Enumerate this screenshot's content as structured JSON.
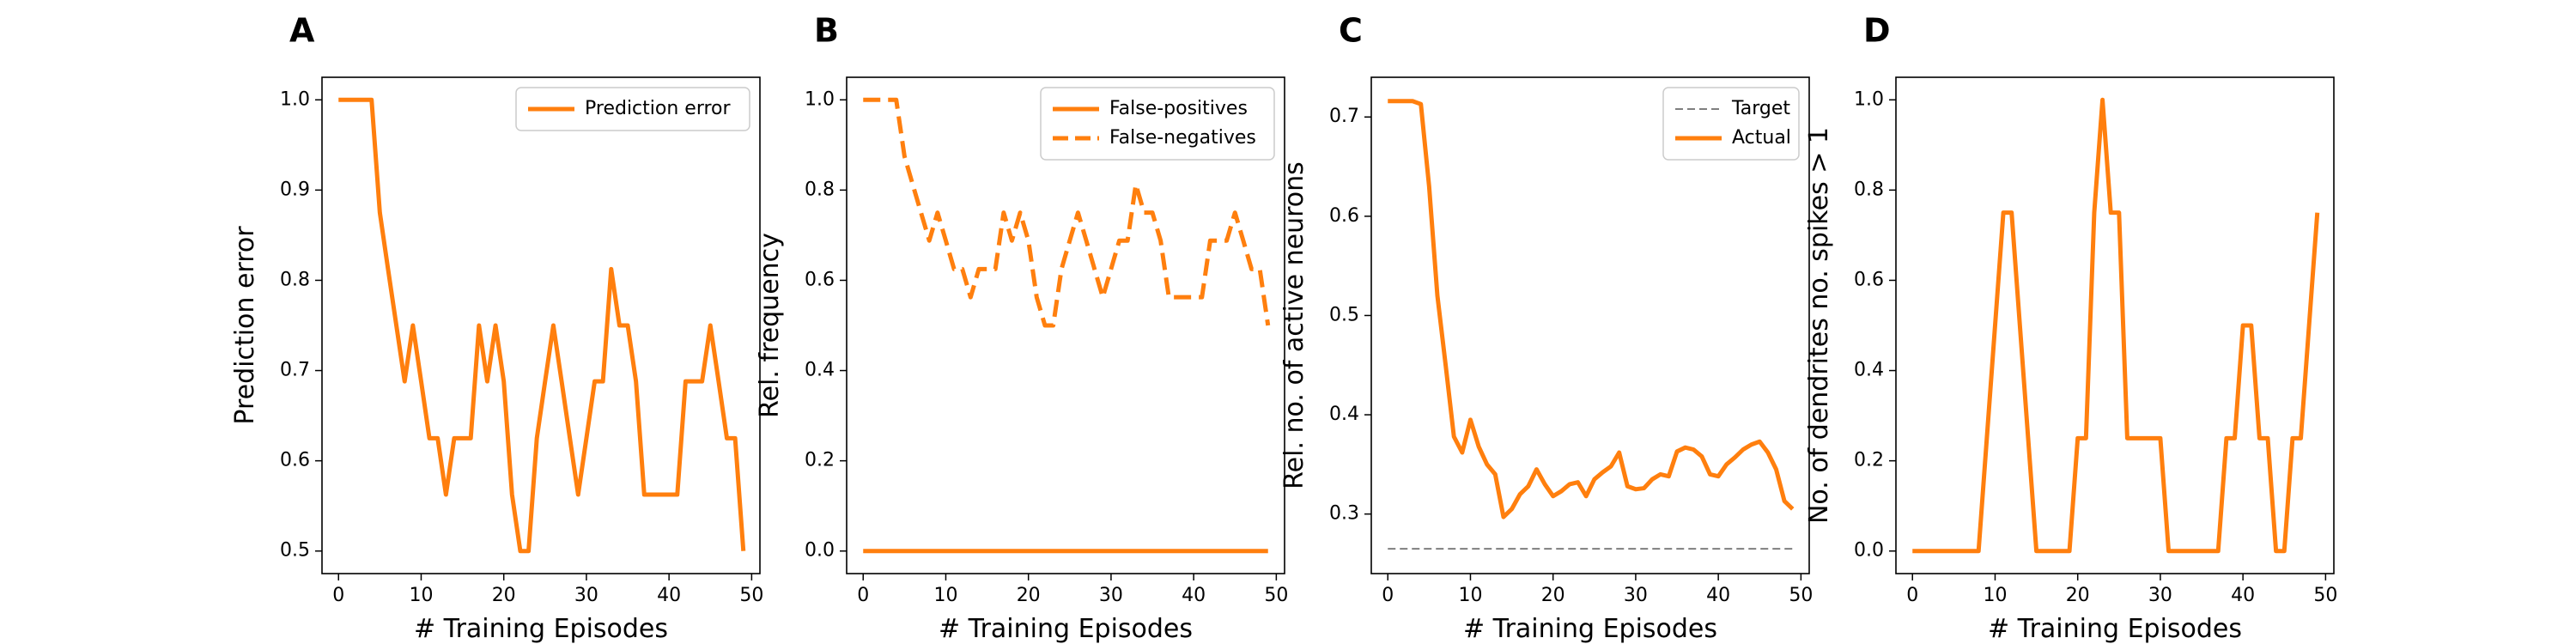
{
  "figure": {
    "background": "#ffffff"
  },
  "chart_data": [
    {
      "panel": "A",
      "type": "line",
      "xlabel": "# Training Episodes",
      "ylabel": "Prediction error",
      "xlim": [
        -2,
        51
      ],
      "ylim": [
        0.475,
        1.025
      ],
      "xticks": [
        0,
        10,
        20,
        30,
        40,
        50
      ],
      "yticks": [
        0.5,
        0.6,
        0.7,
        0.8,
        0.9,
        1.0
      ],
      "ytick_labels": [
        "0.5",
        "0.6",
        "0.7",
        "0.8",
        "0.9",
        "1.0"
      ],
      "legend": {
        "position": "upper right"
      },
      "series": [
        {
          "name": "Prediction error",
          "color": "#ff7f0e",
          "style": "solid",
          "x": [
            0,
            1,
            2,
            3,
            4,
            5,
            6,
            7,
            8,
            9,
            10,
            11,
            12,
            13,
            14,
            15,
            16,
            17,
            18,
            19,
            20,
            21,
            22,
            23,
            24,
            25,
            26,
            27,
            28,
            29,
            30,
            31,
            32,
            33,
            34,
            35,
            36,
            37,
            38,
            39,
            40,
            41,
            42,
            43,
            44,
            45,
            46,
            47,
            48,
            49
          ],
          "y": [
            1.0,
            1.0,
            1.0,
            1.0,
            1.0,
            0.875,
            0.812,
            0.75,
            0.688,
            0.75,
            0.688,
            0.625,
            0.625,
            0.5625,
            0.625,
            0.625,
            0.625,
            0.75,
            0.688,
            0.75,
            0.688,
            0.5625,
            0.5,
            0.5,
            0.625,
            0.688,
            0.75,
            0.688,
            0.625,
            0.5625,
            0.625,
            0.688,
            0.688,
            0.8125,
            0.75,
            0.75,
            0.688,
            0.5625,
            0.5625,
            0.5625,
            0.5625,
            0.5625,
            0.688,
            0.688,
            0.688,
            0.75,
            0.688,
            0.625,
            0.625,
            0.5
          ]
        }
      ]
    },
    {
      "panel": "B",
      "type": "line",
      "xlabel": "# Training Episodes",
      "ylabel": "Rel. frequency",
      "xlim": [
        -2,
        51
      ],
      "ylim": [
        -0.05,
        1.05
      ],
      "xticks": [
        0,
        10,
        20,
        30,
        40,
        50
      ],
      "yticks": [
        0.0,
        0.2,
        0.4,
        0.6,
        0.8,
        1.0
      ],
      "ytick_labels": [
        "0.0",
        "0.2",
        "0.4",
        "0.6",
        "0.8",
        "1.0"
      ],
      "legend": {
        "position": "upper right"
      },
      "series": [
        {
          "name": "False-positives",
          "color": "#ff7f0e",
          "style": "solid",
          "x": [
            0,
            1,
            2,
            3,
            4,
            5,
            6,
            7,
            8,
            9,
            10,
            11,
            12,
            13,
            14,
            15,
            16,
            17,
            18,
            19,
            20,
            21,
            22,
            23,
            24,
            25,
            26,
            27,
            28,
            29,
            30,
            31,
            32,
            33,
            34,
            35,
            36,
            37,
            38,
            39,
            40,
            41,
            42,
            43,
            44,
            45,
            46,
            47,
            48,
            49
          ],
          "y": [
            0,
            0,
            0,
            0,
            0,
            0,
            0,
            0,
            0,
            0,
            0,
            0,
            0,
            0,
            0,
            0,
            0,
            0,
            0,
            0,
            0,
            0,
            0,
            0,
            0,
            0,
            0,
            0,
            0,
            0,
            0,
            0,
            0,
            0,
            0,
            0,
            0,
            0,
            0,
            0,
            0,
            0,
            0,
            0,
            0,
            0,
            0,
            0,
            0,
            0
          ]
        },
        {
          "name": "False-negatives",
          "color": "#ff7f0e",
          "style": "dashed",
          "x": [
            0,
            1,
            2,
            3,
            4,
            5,
            6,
            7,
            8,
            9,
            10,
            11,
            12,
            13,
            14,
            15,
            16,
            17,
            18,
            19,
            20,
            21,
            22,
            23,
            24,
            25,
            26,
            27,
            28,
            29,
            30,
            31,
            32,
            33,
            34,
            35,
            36,
            37,
            38,
            39,
            40,
            41,
            42,
            43,
            44,
            45,
            46,
            47,
            48,
            49
          ],
          "y": [
            1.0,
            1.0,
            1.0,
            1.0,
            1.0,
            0.875,
            0.812,
            0.75,
            0.688,
            0.75,
            0.688,
            0.625,
            0.625,
            0.5625,
            0.625,
            0.625,
            0.625,
            0.75,
            0.688,
            0.75,
            0.688,
            0.5625,
            0.5,
            0.5,
            0.625,
            0.688,
            0.75,
            0.688,
            0.625,
            0.5625,
            0.625,
            0.688,
            0.688,
            0.8125,
            0.75,
            0.75,
            0.688,
            0.5625,
            0.5625,
            0.5625,
            0.5625,
            0.5625,
            0.688,
            0.688,
            0.688,
            0.75,
            0.688,
            0.625,
            0.625,
            0.5
          ]
        }
      ]
    },
    {
      "panel": "C",
      "type": "line",
      "xlabel": "# Training Episodes",
      "ylabel": "Rel. no. of active neurons",
      "xlim": [
        -2,
        51
      ],
      "ylim": [
        0.24,
        0.74
      ],
      "xticks": [
        0,
        10,
        20,
        30,
        40,
        50
      ],
      "yticks": [
        0.3,
        0.4,
        0.5,
        0.6,
        0.7
      ],
      "ytick_labels": [
        "0.3",
        "0.4",
        "0.5",
        "0.6",
        "0.7"
      ],
      "legend": {
        "position": "upper right"
      },
      "series": [
        {
          "name": "Target",
          "color": "#7f7f7f",
          "style": "dashed",
          "x": [
            0,
            49
          ],
          "y": [
            0.265,
            0.265
          ]
        },
        {
          "name": "Actual",
          "color": "#ff7f0e",
          "style": "solid",
          "x": [
            0,
            1,
            2,
            3,
            4,
            5,
            6,
            7,
            8,
            9,
            10,
            11,
            12,
            13,
            14,
            15,
            16,
            17,
            18,
            19,
            20,
            21,
            22,
            23,
            24,
            25,
            26,
            27,
            28,
            29,
            30,
            31,
            32,
            33,
            34,
            35,
            36,
            37,
            38,
            39,
            40,
            41,
            42,
            43,
            44,
            45,
            46,
            47,
            48,
            49
          ],
          "y": [
            0.716,
            0.716,
            0.716,
            0.716,
            0.713,
            0.63,
            0.52,
            0.45,
            0.378,
            0.362,
            0.395,
            0.368,
            0.35,
            0.34,
            0.297,
            0.305,
            0.32,
            0.328,
            0.345,
            0.33,
            0.318,
            0.323,
            0.33,
            0.332,
            0.318,
            0.335,
            0.342,
            0.348,
            0.362,
            0.328,
            0.325,
            0.326,
            0.335,
            0.34,
            0.338,
            0.363,
            0.367,
            0.365,
            0.358,
            0.34,
            0.338,
            0.35,
            0.357,
            0.365,
            0.37,
            0.373,
            0.362,
            0.345,
            0.313,
            0.305
          ]
        }
      ]
    },
    {
      "panel": "D",
      "type": "line",
      "xlabel": "# Training Episodes",
      "ylabel": "No. of dendrites no. spikes > 1",
      "xlim": [
        -2,
        51
      ],
      "ylim": [
        -0.05,
        1.05
      ],
      "xticks": [
        0,
        10,
        20,
        30,
        40,
        50
      ],
      "yticks": [
        0.0,
        0.2,
        0.4,
        0.6,
        0.8,
        1.0
      ],
      "ytick_labels": [
        "0.0",
        "0.2",
        "0.4",
        "0.6",
        "0.8",
        "1.0"
      ],
      "legend": null,
      "series": [
        {
          "color": "#ff7f0e",
          "style": "solid",
          "x": [
            0,
            1,
            2,
            3,
            4,
            5,
            6,
            7,
            8,
            9,
            10,
            11,
            12,
            13,
            14,
            15,
            16,
            17,
            18,
            19,
            20,
            21,
            22,
            23,
            24,
            25,
            26,
            27,
            28,
            29,
            30,
            31,
            32,
            33,
            34,
            35,
            36,
            37,
            38,
            39,
            40,
            41,
            42,
            43,
            44,
            45,
            46,
            47,
            48,
            49
          ],
          "y": [
            0,
            0,
            0,
            0,
            0,
            0,
            0,
            0,
            0,
            0.25,
            0.5,
            0.75,
            0.75,
            0.5,
            0.25,
            0,
            0,
            0,
            0,
            0,
            0.25,
            0.25,
            0.75,
            1.0,
            0.75,
            0.75,
            0.25,
            0.25,
            0.25,
            0.25,
            0.25,
            0,
            0,
            0,
            0,
            0,
            0,
            0,
            0.25,
            0.25,
            0.5,
            0.5,
            0.25,
            0.25,
            0,
            0,
            0.25,
            0.25,
            0.5,
            0.75
          ]
        }
      ]
    }
  ]
}
